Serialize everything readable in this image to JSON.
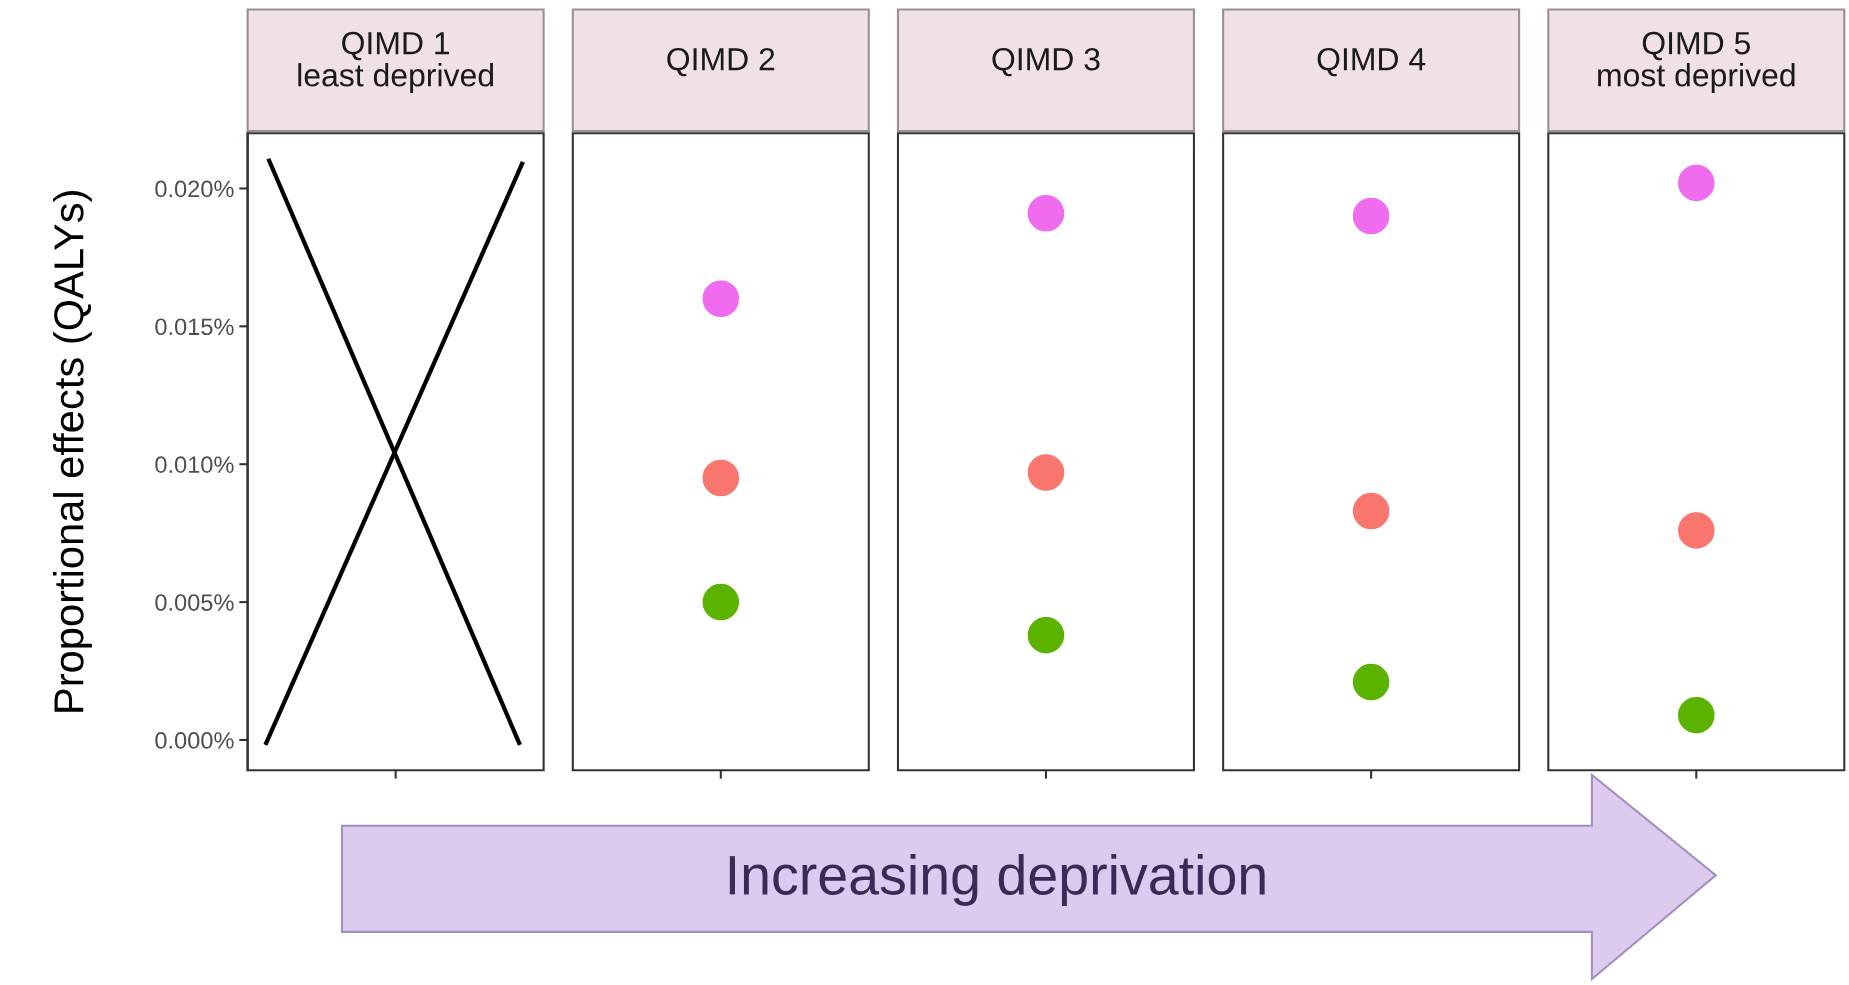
{
  "chart_data": {
    "type": "scatter",
    "ylabel": "Proportional effects (QALYs)",
    "categories": [
      "QIMD 1\nleast deprived",
      "QIMD 2",
      "QIMD 3",
      "QIMD 4",
      "QIMD 5\nmost deprived"
    ],
    "ylim": [
      -0.0011,
      0.022
    ],
    "yticks": [
      {
        "value": 0,
        "label": "0.000%"
      },
      {
        "value": 0.005,
        "label": "0.005%"
      },
      {
        "value": 0.01,
        "label": "0.010%"
      },
      {
        "value": 0.015,
        "label": "0.015%"
      },
      {
        "value": 0.02,
        "label": "0.020%"
      }
    ],
    "grid": false,
    "legend": false,
    "marker": "circle",
    "annotations": [
      "Increasing deprivation"
    ],
    "series": [
      {
        "color": "#ef6cef",
        "values": [
          null,
          0.016,
          0.0191,
          0.019,
          0.0202
        ]
      },
      {
        "color": "#f8766d",
        "values": [
          null,
          0.0095,
          0.0097,
          0.0083,
          0.0076
        ]
      },
      {
        "color": "#5bb300",
        "values": [
          null,
          0.005,
          0.0038,
          0.0021,
          0.0009
        ]
      }
    ]
  }
}
